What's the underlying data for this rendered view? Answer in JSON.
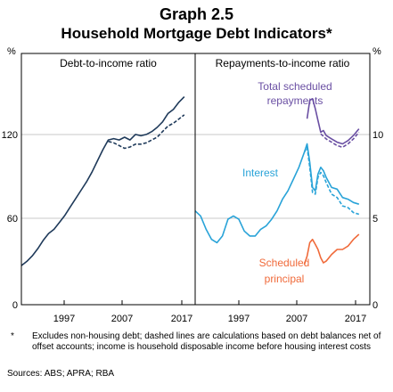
{
  "header": {
    "title": "Graph 2.5",
    "subtitle": "Household Mortgage Debt Indicators*"
  },
  "footnote": {
    "marker": "*",
    "text": "Excludes non-housing debt; dashed lines are calculations based on debt balances net of offset accounts; income is household disposable income before housing interest costs",
    "sources": "Sources: ABS; APRA; RBA"
  },
  "colors": {
    "debt": "#1f3a5a",
    "total": "#6a4fa3",
    "interest": "#29a3d8",
    "principal": "#f06a3a",
    "grid": "#c8c8c8"
  },
  "chart_data": [
    {
      "type": "line",
      "title": "Debt-to-income ratio",
      "unit_label": "%",
      "x_ticks": [
        "1997",
        "2007",
        "2017"
      ],
      "y_ticks": [
        "0",
        "60",
        "120"
      ],
      "ylim": [
        0,
        180
      ],
      "xlim": [
        1988,
        2020
      ],
      "grid": true,
      "series": [
        {
          "color_key": "debt",
          "dashed": false,
          "points": [
            [
              1988.0,
              28
            ],
            [
              1989,
              31
            ],
            [
              1990,
              35
            ],
            [
              1991,
              40
            ],
            [
              1992,
              46
            ],
            [
              1993,
              51
            ],
            [
              1994,
              54
            ],
            [
              1995,
              59
            ],
            [
              1996,
              64
            ],
            [
              1997,
              70
            ],
            [
              1998,
              76
            ],
            [
              1999,
              82
            ],
            [
              2000,
              88
            ],
            [
              2001,
              95
            ],
            [
              2002,
              103
            ],
            [
              2003,
              111
            ],
            [
              2004,
              118
            ],
            [
              2005,
              119
            ],
            [
              2006,
              118
            ],
            [
              2007,
              120
            ],
            [
              2008,
              118
            ],
            [
              2009,
              122
            ],
            [
              2010,
              121
            ],
            [
              2011,
              122
            ],
            [
              2012,
              124
            ],
            [
              2013,
              127
            ],
            [
              2014,
              131
            ],
            [
              2015,
              137
            ],
            [
              2016,
              140
            ],
            [
              2017,
              145
            ],
            [
              2018,
              149
            ]
          ]
        },
        {
          "color_key": "debt",
          "dashed": true,
          "points": [
            [
              2004,
              117
            ],
            [
              2005,
              116
            ],
            [
              2006,
              114
            ],
            [
              2007,
              112
            ],
            [
              2008,
              113
            ],
            [
              2009,
              115
            ],
            [
              2010,
              115
            ],
            [
              2011,
              116
            ],
            [
              2012,
              118
            ],
            [
              2013,
              120
            ],
            [
              2014,
              124
            ],
            [
              2015,
              128
            ],
            [
              2016,
              130
            ],
            [
              2017,
              133
            ],
            [
              2018,
              136
            ]
          ]
        }
      ]
    },
    {
      "type": "line",
      "title": "Repayments-to-income ratio",
      "unit_label": "%",
      "x_ticks": [
        "1997",
        "2007",
        "2017"
      ],
      "y_ticks": [
        "0",
        "5",
        "10"
      ],
      "ylim": [
        0,
        15
      ],
      "xlim": [
        1988,
        2020
      ],
      "grid": true,
      "annotations": [
        {
          "text": "Total scheduled",
          "color_key": "total"
        },
        {
          "text": "repayments",
          "color_key": "total"
        },
        {
          "text": "Interest",
          "color_key": "interest"
        },
        {
          "text": "Scheduled",
          "color_key": "principal"
        },
        {
          "text": "principal",
          "color_key": "principal"
        }
      ],
      "series": [
        {
          "color_key": "total",
          "dashed": false,
          "points": [
            [
              2008.5,
              11.1
            ],
            [
              2009,
              12.2
            ],
            [
              2009.5,
              12.3
            ],
            [
              2010,
              11.7
            ],
            [
              2010.5,
              11.0
            ],
            [
              2011,
              10.3
            ],
            [
              2011.5,
              10.4
            ],
            [
              2012,
              10.1
            ],
            [
              2013,
              9.9
            ],
            [
              2014,
              9.7
            ],
            [
              2015,
              9.6
            ],
            [
              2016,
              9.8
            ],
            [
              2017,
              10.1
            ],
            [
              2018,
              10.5
            ]
          ]
        },
        {
          "color_key": "total",
          "dashed": true,
          "points": [
            [
              2011,
              10.2
            ],
            [
              2012,
              9.9
            ],
            [
              2013,
              9.7
            ],
            [
              2014,
              9.5
            ],
            [
              2015,
              9.4
            ],
            [
              2016,
              9.6
            ],
            [
              2017,
              9.9
            ],
            [
              2018,
              10.3
            ]
          ]
        },
        {
          "color_key": "interest",
          "dashed": false,
          "points": [
            [
              1988,
              5.6
            ],
            [
              1989,
              5.3
            ],
            [
              1990,
              4.5
            ],
            [
              1991,
              3.9
            ],
            [
              1992,
              3.7
            ],
            [
              1993,
              4.1
            ],
            [
              1994,
              5.1
            ],
            [
              1995,
              5.3
            ],
            [
              1996,
              5.1
            ],
            [
              1997,
              4.4
            ],
            [
              1998,
              4.1
            ],
            [
              1999,
              4.1
            ],
            [
              2000,
              4.5
            ],
            [
              2001,
              4.7
            ],
            [
              2002,
              5.1
            ],
            [
              2003,
              5.6
            ],
            [
              2004,
              6.3
            ],
            [
              2005,
              6.8
            ],
            [
              2006,
              7.5
            ],
            [
              2007,
              8.2
            ],
            [
              2008,
              9.1
            ],
            [
              2008.5,
              9.6
            ],
            [
              2009,
              8.5
            ],
            [
              2009.5,
              7.0
            ],
            [
              2010,
              6.8
            ],
            [
              2010.5,
              7.8
            ],
            [
              2011,
              8.2
            ],
            [
              2011.5,
              8.0
            ],
            [
              2012,
              7.6
            ],
            [
              2013,
              7.0
            ],
            [
              2014,
              6.9
            ],
            [
              2015,
              6.4
            ],
            [
              2016,
              6.3
            ],
            [
              2017,
              6.1
            ],
            [
              2018,
              6.0
            ]
          ]
        },
        {
          "color_key": "interest",
          "dashed": true,
          "points": [
            [
              2008,
              9.1
            ],
            [
              2008.5,
              9.4
            ],
            [
              2009,
              8.2
            ],
            [
              2009.5,
              6.7
            ],
            [
              2010,
              6.6
            ],
            [
              2010.5,
              7.6
            ],
            [
              2011,
              7.9
            ],
            [
              2011.5,
              7.7
            ],
            [
              2012,
              7.3
            ],
            [
              2013,
              6.6
            ],
            [
              2014,
              6.4
            ],
            [
              2015,
              5.9
            ],
            [
              2016,
              5.8
            ],
            [
              2017,
              5.5
            ],
            [
              2018,
              5.4
            ]
          ]
        },
        {
          "color_key": "principal",
          "dashed": false,
          "points": [
            [
              2008,
              2.4
            ],
            [
              2008.5,
              2.9
            ],
            [
              2009,
              3.7
            ],
            [
              2009.5,
              3.9
            ],
            [
              2010,
              3.6
            ],
            [
              2010.5,
              3.3
            ],
            [
              2011,
              2.8
            ],
            [
              2011.5,
              2.5
            ],
            [
              2012,
              2.6
            ],
            [
              2013,
              3.0
            ],
            [
              2014,
              3.3
            ],
            [
              2015,
              3.3
            ],
            [
              2016,
              3.5
            ],
            [
              2017,
              3.9
            ],
            [
              2018,
              4.2
            ]
          ]
        }
      ]
    }
  ]
}
